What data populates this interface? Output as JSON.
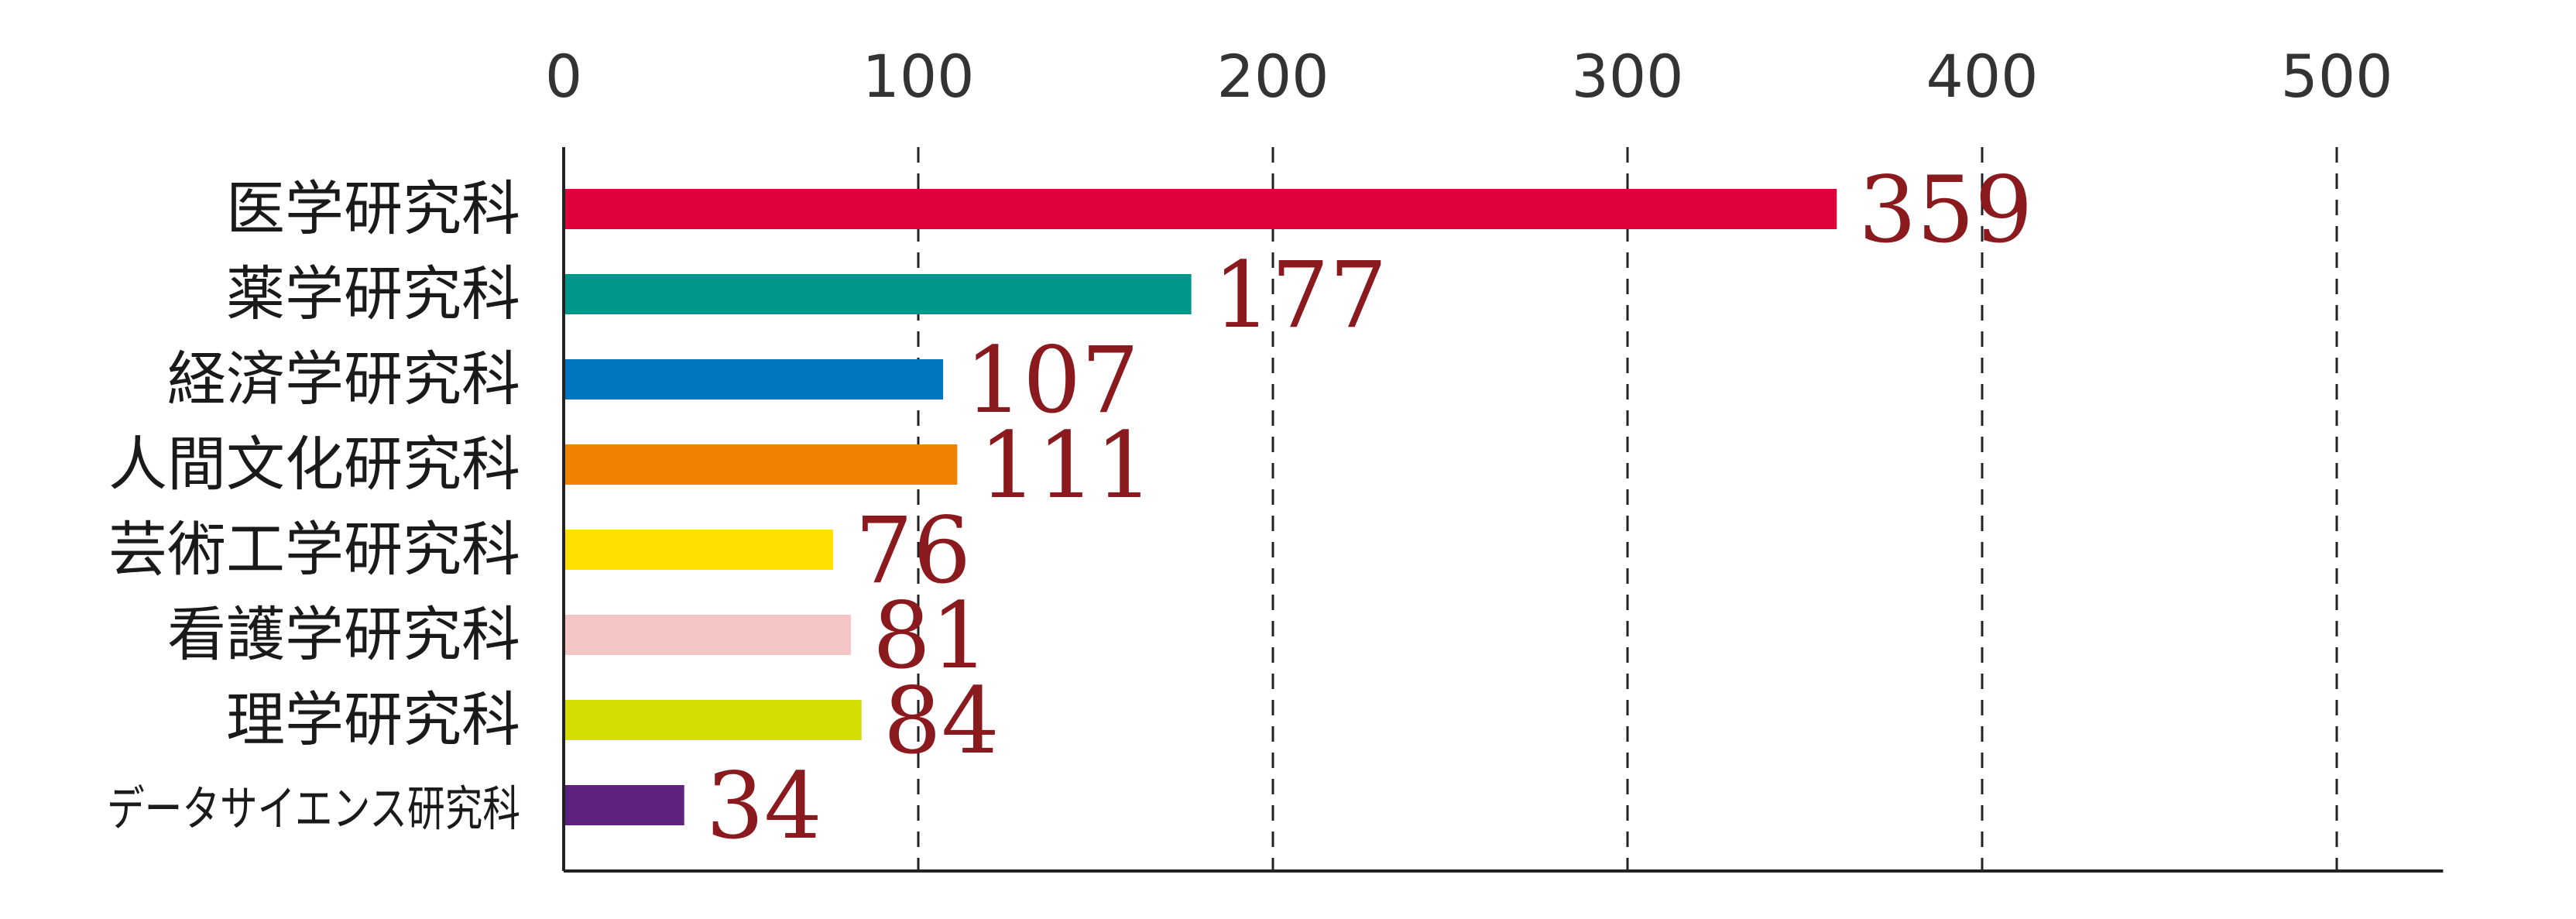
{
  "chart_data": {
    "type": "bar",
    "orientation": "horizontal",
    "categories": [
      "医学研究科",
      "薬学研究科",
      "経済学研究科",
      "人間文化研究科",
      "芸術工学研究科",
      "看護学研究科",
      "理学研究科",
      "データサイエンス研究科"
    ],
    "values": [
      359,
      177,
      107,
      111,
      76,
      81,
      84,
      34
    ],
    "value_labels": [
      "359",
      "177",
      "107",
      "111",
      "76",
      "81",
      "84",
      "34"
    ],
    "colors": [
      "#e0003c",
      "#00978a",
      "#0075c2",
      "#ef8200",
      "#ffe100",
      "#f6c6c6",
      "#d4dd00",
      "#5f2180"
    ],
    "value_label_color": "#8b1a1f",
    "xlim": [
      0,
      530
    ],
    "xticks": [
      0,
      100,
      200,
      300,
      400,
      500
    ],
    "xtick_labels": [
      "0",
      "100",
      "200",
      "300",
      "400",
      "500"
    ],
    "x_axis_position": "top",
    "grid": true,
    "grid_style": "dashed"
  }
}
